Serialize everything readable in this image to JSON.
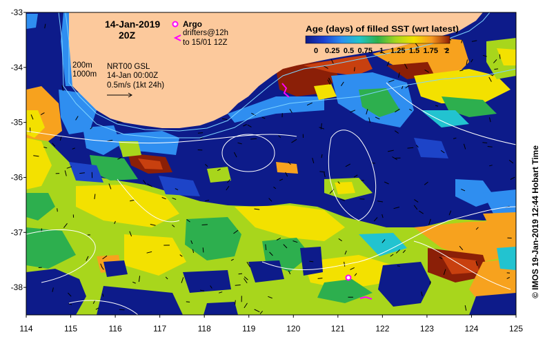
{
  "header": {
    "date": "14-Jan-2019",
    "time": "20Z"
  },
  "legend": {
    "argo_label": "Argo",
    "drifters_label": "drifters@12h",
    "drifters_period": "to 15/01 12Z"
  },
  "colorbar": {
    "title": "Age (days) of filled SST (wrt latest)",
    "ticks": [
      "0",
      "0.25",
      "0.5",
      "0.75",
      "1",
      "1.25",
      "1.5",
      "1.75",
      "2"
    ],
    "range": [
      0,
      2
    ],
    "colors": [
      "#0c1a86",
      "#1a3fd0",
      "#2a8ff0",
      "#22c4c8",
      "#2eb04a",
      "#a6d61e",
      "#f2e200",
      "#f7981e",
      "#8c1c06"
    ]
  },
  "annotations": {
    "isobath_200": "200m",
    "isobath_1000": "1000m",
    "product": "NRT00 GSL",
    "product_time": "14-Jan 00:00Z",
    "vector_scale": "0.5m/s (1kt 24h)"
  },
  "axes": {
    "x_ticks": [
      "114",
      "115",
      "116",
      "117",
      "118",
      "119",
      "120",
      "121",
      "122",
      "123",
      "124",
      "125"
    ],
    "y_ticks": [
      "-33",
      "-34",
      "-35",
      "-36",
      "-37",
      "-38"
    ],
    "lon_range": [
      114,
      125
    ],
    "lat_range": [
      -33,
      -38.5
    ]
  },
  "credit": "© IMOS 19-Jan-2019 12:44 Hobart Time",
  "colors": {
    "land": "#fcc99c",
    "ocean": "#0d1b8a",
    "argo_marker": "#ff00ff",
    "drifter_track": "#ff00ff",
    "contour": "#ffffff",
    "isobath": "#7fd4ff"
  }
}
